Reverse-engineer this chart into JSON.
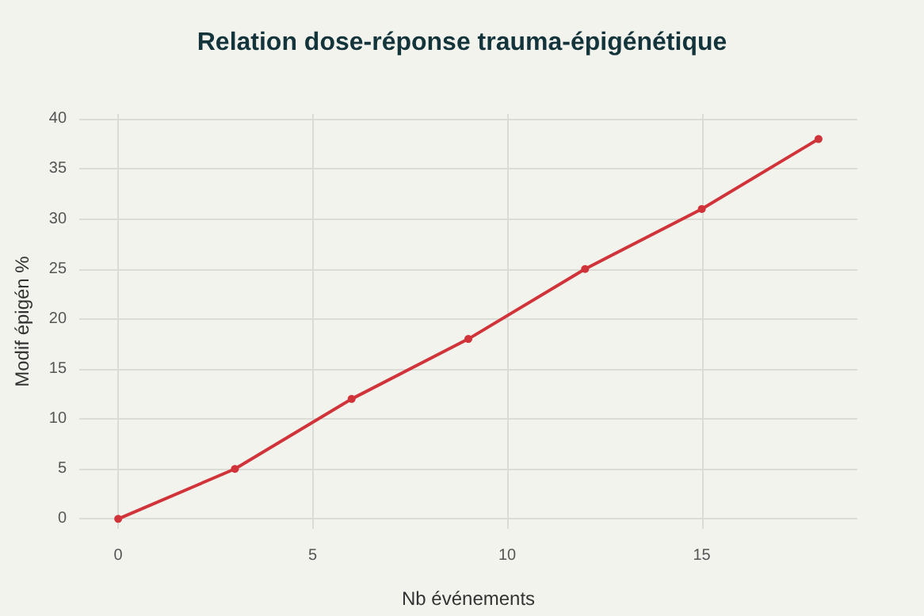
{
  "chart_data": {
    "type": "line",
    "title": "Relation dose-réponse trauma-épigénétique",
    "xlabel": "Nb événements",
    "ylabel": "Modif épigén %",
    "x": [
      0,
      3,
      6,
      9,
      12,
      15,
      18
    ],
    "series": [
      {
        "color": "#d0343a",
        "values": [
          0,
          5,
          12,
          18,
          25,
          31,
          38
        ]
      }
    ],
    "xlim": [
      -1,
      19
    ],
    "xticks": [
      0,
      5,
      10,
      15
    ],
    "ylim": [
      -1,
      40.5
    ],
    "yticks": [
      0,
      5,
      10,
      15,
      20,
      25,
      30,
      35,
      40
    ],
    "grid": true,
    "marker": "circle",
    "line_style": "solid"
  }
}
